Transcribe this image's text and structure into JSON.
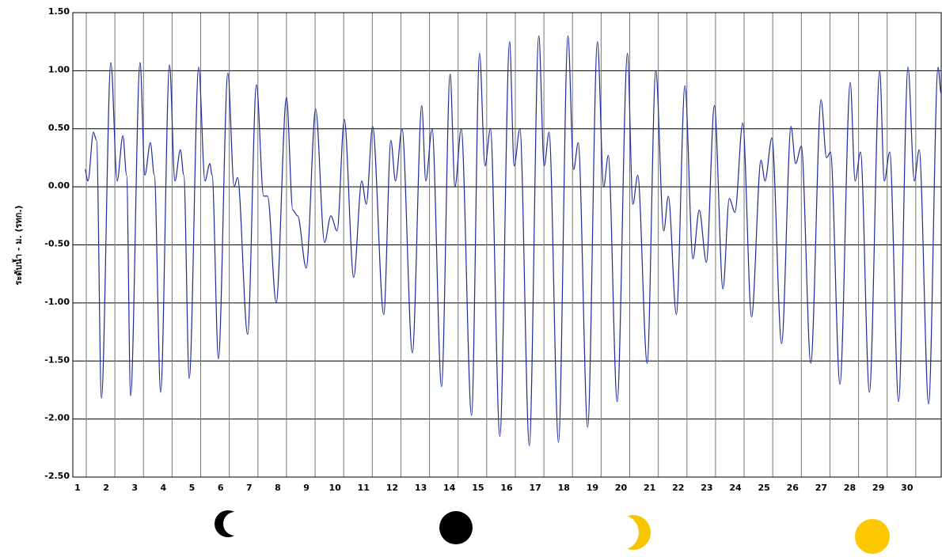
{
  "chart_data": {
    "type": "line",
    "y_label": "ระดับน้ำ - ม. (รทก.)",
    "xlim": [
      0.53,
      30.89
    ],
    "xticks": [
      1,
      2,
      3,
      4,
      5,
      6,
      7,
      8,
      9,
      10,
      11,
      12,
      13,
      14,
      15,
      16,
      17,
      18,
      19,
      20,
      21,
      22,
      23,
      24,
      25,
      26,
      27,
      28,
      29,
      30
    ],
    "ylim": [
      -2.5,
      1.5
    ],
    "yticks": [
      {
        "value": 1.5,
        "label": "1.50"
      },
      {
        "value": 1,
        "label": "1.00"
      },
      {
        "value": 0.5,
        "label": "0.50"
      },
      {
        "value": 0,
        "label": "0.00"
      },
      {
        "value": -0.5,
        "label": "-0.50"
      },
      {
        "value": -1,
        "label": "-1.00"
      },
      {
        "value": -1.5,
        "label": "-1.50"
      },
      {
        "value": -2,
        "label": "-2.00"
      },
      {
        "value": -2.5,
        "label": "-2.50"
      }
    ],
    "grid": true,
    "x": [
      0.95,
      1.06,
      1.25,
      1.36,
      1.53,
      1.86,
      2.08,
      2.28,
      2.41,
      2.55,
      2.88,
      3.05,
      3.24,
      3.38,
      3.6,
      3.91,
      4.1,
      4.29,
      4.41,
      4.6,
      4.93,
      5.15,
      5.32,
      5.4,
      5.62,
      5.95,
      6.17,
      6.29,
      6.64,
      6.95,
      7.2,
      7.34,
      7.64,
      8.0,
      8.22,
      8.39,
      8.69,
      9.02,
      9.33,
      9.55,
      9.77,
      10.02,
      10.35,
      10.63,
      10.79,
      11.01,
      11.4,
      11.65,
      11.81,
      12.04,
      12.4,
      12.73,
      12.87,
      13.09,
      13.42,
      13.72,
      13.89,
      14.11,
      14.47,
      14.75,
      14.94,
      15.13,
      15.46,
      15.8,
      15.96,
      16.16,
      16.49,
      16.82,
      17.01,
      17.18,
      17.51,
      17.84,
      18.04,
      18.2,
      18.53,
      18.87,
      19.09,
      19.25,
      19.56,
      19.92,
      20.11,
      20.28,
      20.61,
      20.91,
      21.19,
      21.35,
      21.63,
      21.93,
      22.21,
      22.43,
      22.68,
      22.96,
      23.26,
      23.48,
      23.68,
      23.95,
      24.26,
      24.59,
      24.73,
      24.97,
      25.31,
      25.64,
      25.8,
      26.0,
      26.33,
      26.69,
      26.88,
      27.02,
      27.35,
      27.71,
      27.88,
      28.07,
      28.38,
      28.74,
      28.9,
      29.09,
      29.4,
      29.73,
      29.95,
      30.12,
      30.45,
      30.78,
      30.89
    ],
    "series": [
      {
        "color": "#1f2a9c",
        "values": [
          0.15,
          0.05,
          0.47,
          0.4,
          -1.82,
          1.07,
          0.05,
          0.44,
          0.1,
          -1.8,
          1.07,
          0.1,
          0.38,
          0.1,
          -1.77,
          1.05,
          0.05,
          0.32,
          0.1,
          -1.65,
          1.03,
          0.05,
          0.2,
          0.1,
          -1.48,
          0.98,
          0,
          0.08,
          -1.27,
          0.88,
          -0.08,
          -0.08,
          -1.0,
          0.77,
          -0.2,
          -0.25,
          -0.7,
          0.67,
          -0.48,
          -0.25,
          -0.38,
          0.58,
          -0.78,
          0.05,
          -0.15,
          0.52,
          -1.1,
          0.4,
          0.05,
          0.5,
          -1.43,
          0.7,
          0.05,
          0.5,
          -1.72,
          0.97,
          0,
          0.5,
          -1.97,
          1.15,
          0.18,
          0.5,
          -2.15,
          1.25,
          0.18,
          0.5,
          -2.23,
          1.3,
          0.18,
          0.47,
          -2.2,
          1.3,
          0.15,
          0.38,
          -2.07,
          1.25,
          0,
          0.27,
          -1.85,
          1.15,
          -0.15,
          0.1,
          -1.52,
          1.0,
          -0.38,
          -0.08,
          -1.1,
          0.87,
          -0.62,
          -0.2,
          -0.65,
          0.7,
          -0.88,
          -0.1,
          -0.22,
          0.55,
          -1.12,
          0.23,
          0.05,
          0.42,
          -1.35,
          0.52,
          0.2,
          0.35,
          -1.52,
          0.75,
          0.25,
          0.3,
          -1.7,
          0.9,
          0.05,
          0.3,
          -1.77,
          1.0,
          0.05,
          0.3,
          -1.85,
          1.03,
          0.05,
          0.32,
          -1.87,
          1.03,
          0.8
        ]
      }
    ]
  }
}
